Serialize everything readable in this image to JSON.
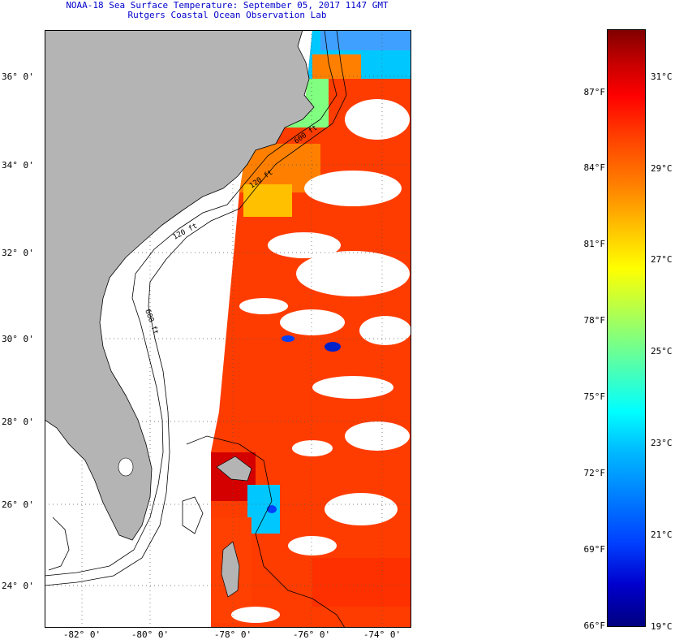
{
  "title": {
    "line1": "NOAA-18 Sea Surface Temperature:  September 05, 2017 1147 GMT",
    "line2": "Rutgers Coastal Ocean Observation Lab"
  },
  "map": {
    "lat_labels": [
      "36° 0'",
      "34° 0'",
      "32° 0'",
      "30° 0'",
      "28° 0'",
      "26° 0'",
      "24° 0'"
    ],
    "lon_labels": [
      "-82° 0'",
      "-80° 0'",
      "-78° 0'",
      "-76° 0'",
      "-74° 0'"
    ],
    "contour_labels": [
      "120 ft",
      "600 ft",
      "120 ft",
      "600 ft"
    ],
    "colors": {
      "land": "#b4b4b4",
      "cloud": "#ffffff",
      "warm": "#ff3c00",
      "hot": "#d40000",
      "cool": "#00c8ff"
    }
  },
  "colorbar": {
    "fahrenheit": [
      "87°F",
      "84°F",
      "81°F",
      "78°F",
      "75°F",
      "72°F",
      "69°F",
      "66°F"
    ],
    "celsius": [
      "31°C",
      "29°C",
      "27°C",
      "25°C",
      "23°C",
      "21°C",
      "19°C"
    ]
  }
}
